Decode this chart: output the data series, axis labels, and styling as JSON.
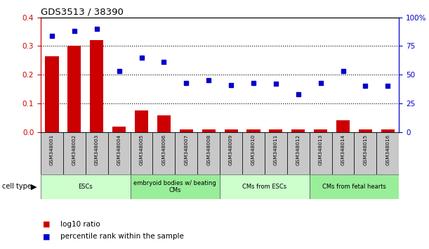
{
  "title": "GDS3513 / 38390",
  "samples": [
    "GSM348001",
    "GSM348002",
    "GSM348003",
    "GSM348004",
    "GSM348005",
    "GSM348006",
    "GSM348007",
    "GSM348008",
    "GSM348009",
    "GSM348010",
    "GSM348011",
    "GSM348012",
    "GSM348013",
    "GSM348014",
    "GSM348015",
    "GSM348016"
  ],
  "log10_ratio": [
    0.265,
    0.3,
    0.32,
    0.018,
    0.075,
    0.058,
    0.008,
    0.008,
    0.008,
    0.008,
    0.01,
    0.008,
    0.01,
    0.04,
    0.008,
    0.008
  ],
  "percentile_rank": [
    84,
    88,
    90,
    53,
    65,
    61,
    43,
    45,
    41,
    43,
    42,
    33,
    43,
    53,
    40,
    40
  ],
  "bar_color": "#cc0000",
  "dot_color": "#0000cc",
  "ylim_left": [
    0,
    0.4
  ],
  "ylim_right": [
    0,
    100
  ],
  "yticks_left": [
    0,
    0.1,
    0.2,
    0.3,
    0.4
  ],
  "yticks_right": [
    0,
    25,
    50,
    75,
    100
  ],
  "groups": [
    {
      "label": "ESCs",
      "start": 0,
      "end": 3,
      "color": "#ccffcc"
    },
    {
      "label": "embryoid bodies w/ beating\nCMs",
      "start": 4,
      "end": 7,
      "color": "#99ee99"
    },
    {
      "label": "CMs from ESCs",
      "start": 8,
      "end": 11,
      "color": "#ccffcc"
    },
    {
      "label": "CMs from fetal hearts",
      "start": 12,
      "end": 15,
      "color": "#99ee99"
    }
  ],
  "left_axis_color": "#cc0000",
  "right_axis_color": "#0000cc",
  "legend_items": [
    {
      "label": "log10 ratio",
      "color": "#cc0000"
    },
    {
      "label": "percentile rank within the sample",
      "color": "#0000cc"
    }
  ],
  "cell_type_label": "cell type"
}
